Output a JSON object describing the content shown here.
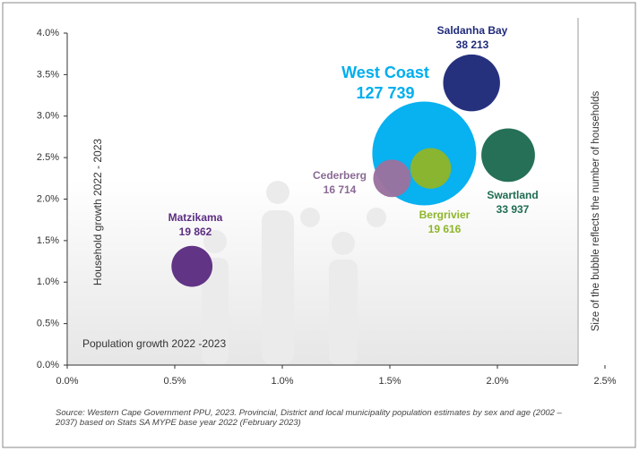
{
  "chart_data": {
    "type": "bubble",
    "categories": [
      "West Coast",
      "Saldanha Bay",
      "Swartland",
      "Cederberg",
      "Bergrivier",
      "Matzikama"
    ],
    "x": [
      1.66,
      1.88,
      2.05,
      1.51,
      1.69,
      0.58
    ],
    "values": [
      2.55,
      3.4,
      2.53,
      2.25,
      2.37,
      1.19
    ],
    "sizes": [
      127739,
      38213,
      33937,
      16714,
      19616,
      19862
    ],
    "size_labels": [
      "127 739",
      "38 213",
      "33 937",
      "16 714",
      "19 616",
      "19 862"
    ],
    "colors": [
      "#00aeef",
      "#1f2a7a",
      "#1e6b52",
      "#9a729f",
      "#8db52a",
      "#5c2d82"
    ],
    "label_colors": [
      "#00aeef",
      "#1f2a7a",
      "#1e6b52",
      "#8a6a94",
      "#8db52a",
      "#5c2d82"
    ],
    "xlabel": "Population growth 2022 -2023",
    "ylabel": "Household growth 2022 - 2023",
    "size_note": "Size of the bubble reflects the number of households",
    "source": "Source: Western Cape Government PPU, 2023. Provincial, District and local municipality population estimates by sex and age (2002 – 2037) based on Stats SA MYPE base year 2022 (February 2023)",
    "xlim": [
      0,
      2.5
    ],
    "xticks": [
      {
        "value": 0,
        "label": "0.0%"
      },
      {
        "value": 0.5,
        "label": "0.5%"
      },
      {
        "value": 1,
        "label": "1.0%"
      },
      {
        "value": 1.5,
        "label": "1.5%"
      },
      {
        "value": 2,
        "label": "2.0%"
      },
      {
        "value": 2.5,
        "label": "2.5%"
      }
    ],
    "ylim": [
      0,
      4
    ],
    "yticks": [
      {
        "value": 0,
        "label": "0.0%"
      },
      {
        "value": 0.5,
        "label": "0.5%"
      },
      {
        "value": 1,
        "label": "1.0%"
      },
      {
        "value": 1.5,
        "label": "1.5%"
      },
      {
        "value": 2,
        "label": "2.0%"
      },
      {
        "value": 2.5,
        "label": "2.5%"
      },
      {
        "value": 3,
        "label": "3.0%"
      },
      {
        "value": 3.5,
        "label": "3.5%"
      },
      {
        "value": 4,
        "label": "4.0%"
      }
    ]
  }
}
